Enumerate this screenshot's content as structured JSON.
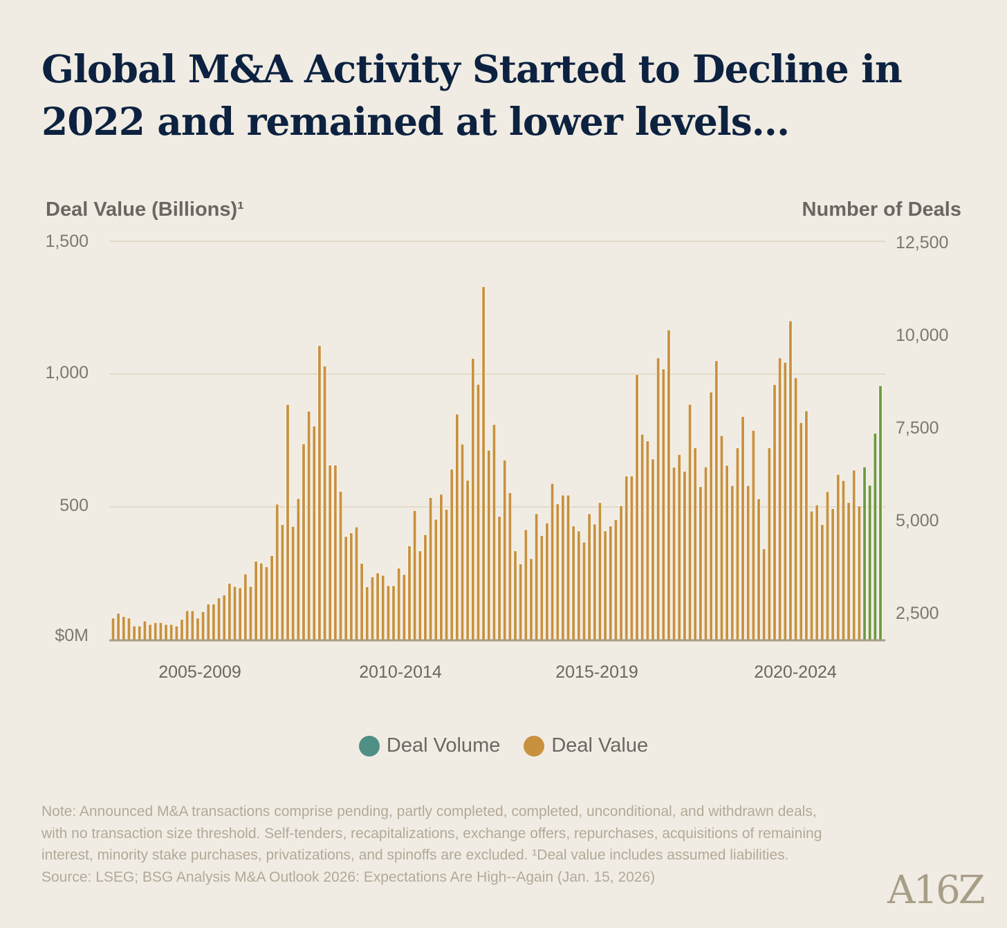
{
  "title": "Global M&A Activity Started to Decline in 2022 and remained at lower levels...",
  "colors": {
    "background": "#f0ece3",
    "title": "#0d2240",
    "deal_value": "#c8913e",
    "recent": "#6e9a3e",
    "deal_volume": "#4e8f86",
    "grid": "#e2dac8",
    "baseline": "#a89c88"
  },
  "chart_data": {
    "type": "bar",
    "title": "Global M&A Activity Started to Decline in 2022 and remained at lower levels...",
    "ylabel": "Deal Value (Billions)¹",
    "ylabel_right": "Number of Deals",
    "ylim": [
      0,
      1500
    ],
    "ylim_right": [
      1810,
      12500
    ],
    "yticks": [
      "$0M",
      "500",
      "1,000",
      "1,500"
    ],
    "yticks_right": [
      "2,500",
      "5,000",
      "7,500",
      "10,000",
      "12,500"
    ],
    "xticks": [
      "2005-2009",
      "2010-2014",
      "2015-2019",
      "2020-2024"
    ],
    "grid": true,
    "legend": [
      "Deal Volume",
      "Deal Value"
    ],
    "legend_placement": "bottom-center",
    "highlighted_last_n": 4,
    "series": [
      {
        "name": "Deal Value",
        "values": [
          81,
          99,
          87,
          81,
          51,
          51,
          70,
          57,
          64,
          64,
          57,
          57,
          51,
          76,
          109,
          109,
          81,
          105,
          134,
          134,
          157,
          168,
          212,
          200,
          195,
          247,
          200,
          295,
          288,
          274,
          316,
          510,
          433,
          885,
          426,
          531,
          737,
          860,
          804,
          1107,
          1030,
          657,
          657,
          558,
          388,
          402,
          424,
          287,
          199,
          236,
          251,
          242,
          203,
          203,
          269,
          245,
          353,
          486,
          334,
          395,
          535,
          453,
          547,
          490,
          642,
          849,
          736,
          600,
          1059,
          961,
          1329,
          713,
          810,
          464,
          676,
          553,
          334,
          285,
          414,
          305,
          474,
          392,
          439,
          588,
          511,
          544,
          544,
          428,
          409,
          367,
          474,
          435,
          516,
          409,
          428,
          451,
          504,
          616,
          616,
          998,
          773,
          748,
          680,
          1061,
          1019,
          1166,
          649,
          697,
          634,
          886,
          722,
          576,
          650,
          932,
          1050,
          768,
          656,
          580,
          722,
          840,
          580,
          788,
          530,
          342,
          722,
          960,
          1061,
          1044,
          1200,
          986,
          817,
          861,
          484,
          507,
          433,
          557,
          493,
          622,
          599,
          516,
          638,
          503,
          650,
          581,
          777,
          956
        ]
      }
    ]
  },
  "note": "Note: Announced M&A transactions comprise pending, partly completed, completed, unconditional, and withdrawn deals, with no transaction size threshold. Self-tenders, recapitalizations, exchange offers, repurchases, acquisitions of remaining interest, minority stake purchases, privatizations, and spinoffs are excluded. ¹Deal value includes assumed liabilities.",
  "source": "Source: LSEG; BSG Analysis M&A Outlook 2026: Expectations Are High--Again (Jan. 15, 2026)",
  "logo": "A16Z"
}
